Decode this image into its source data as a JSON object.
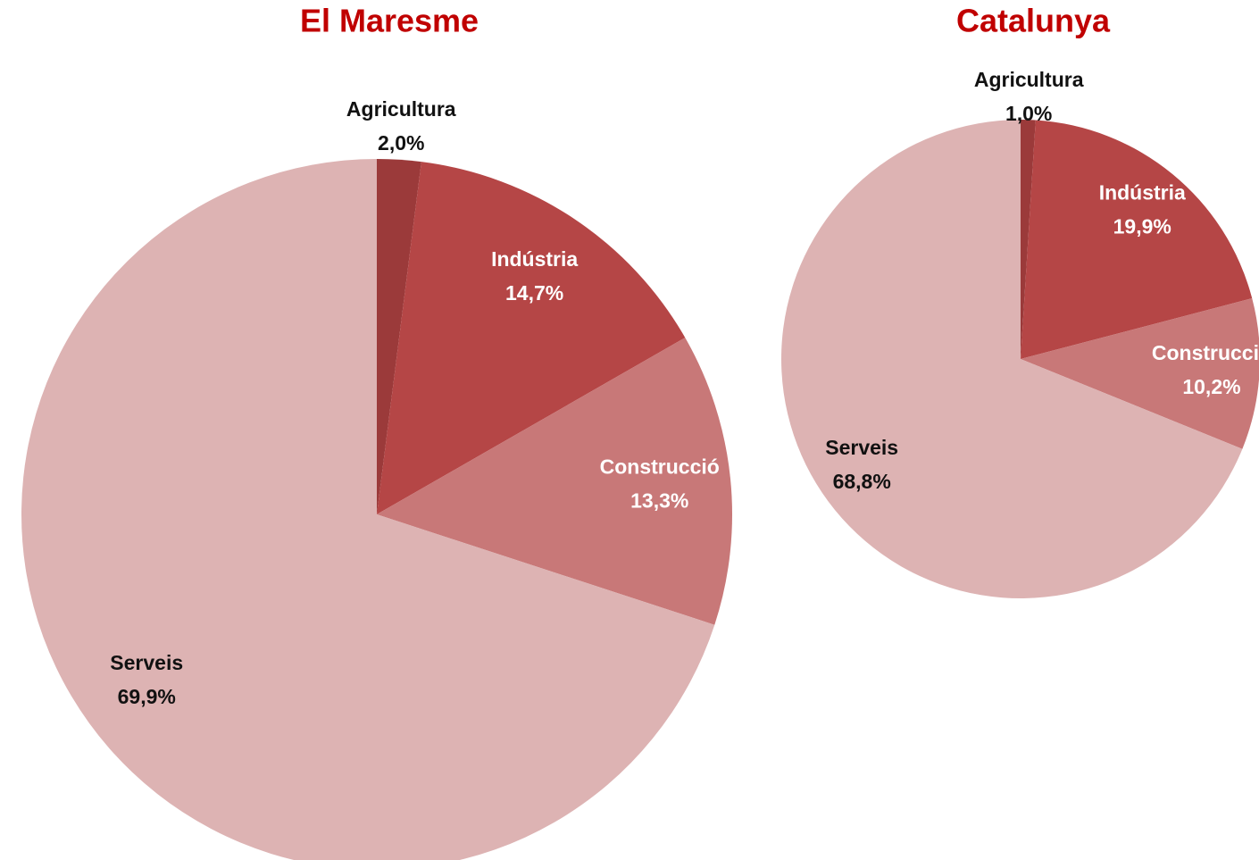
{
  "chart_data": [
    {
      "type": "pie",
      "title": "El Maresme",
      "categories": [
        "Agricultura",
        "Indústria",
        "Construcció",
        "Serveis"
      ],
      "values": [
        2.0,
        14.7,
        13.3,
        69.9
      ],
      "value_labels": [
        "2,0%",
        "14,7%",
        "13,3%",
        "69,9%"
      ],
      "colors": [
        "#9b3a3a",
        "#b54646",
        "#c87878",
        "#ddb3b3"
      ],
      "label_colors": [
        "#111111",
        "#ffffff",
        "#ffffff",
        "#111111"
      ]
    },
    {
      "type": "pie",
      "title": "Catalunya",
      "categories": [
        "Agricultura",
        "Indústria",
        "Construcció",
        "Serveis"
      ],
      "values": [
        1.0,
        19.9,
        10.2,
        68.8
      ],
      "value_labels": [
        "1,0%",
        "19,9%",
        "10,2%",
        "68,8%"
      ],
      "colors": [
        "#9b3a3a",
        "#b54646",
        "#c87878",
        "#ddb3b3"
      ],
      "label_colors": [
        "#111111",
        "#ffffff",
        "#ffffff",
        "#111111"
      ]
    }
  ]
}
